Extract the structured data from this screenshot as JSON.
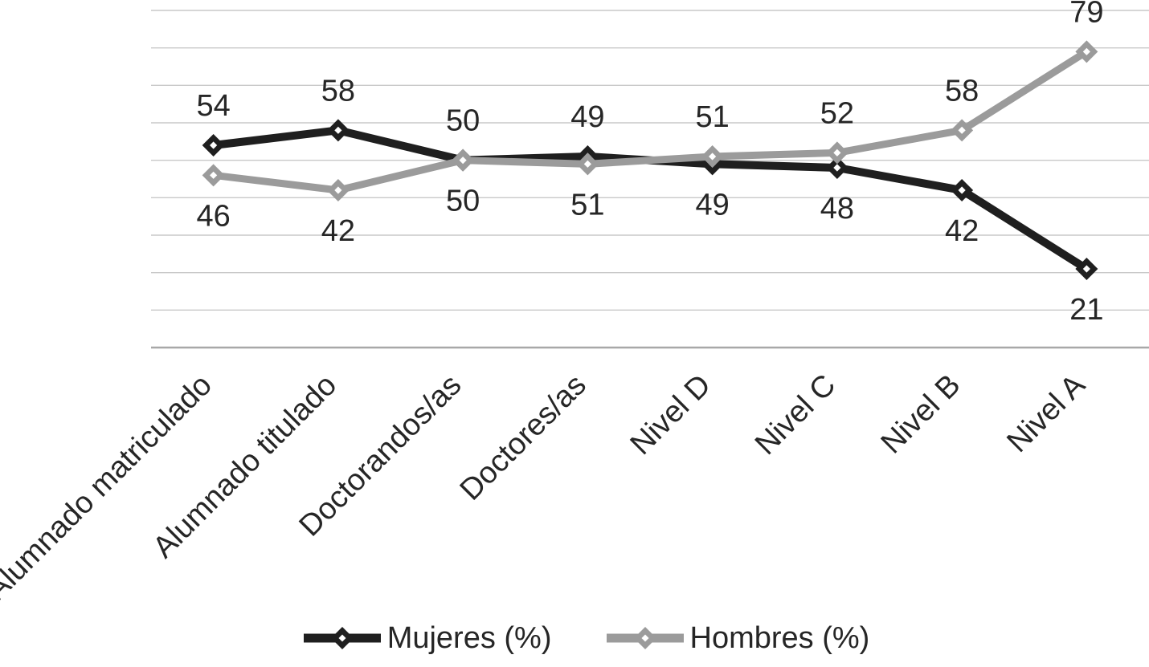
{
  "figure": {
    "background_color": "#ffffff",
    "text_color": "#262626"
  },
  "legend": {
    "position": "bottom",
    "items": [
      {
        "label": "Mujeres (%)",
        "marker": "line-with-diamond",
        "color": "#1f1f1f"
      },
      {
        "label": "Hombres (%)",
        "marker": "line-with-diamond",
        "color": "#9b9b9b"
      }
    ]
  },
  "chart_data": {
    "type": "line",
    "categories": [
      "Alumnado matriculado",
      "Alumnado titulado",
      "Doctorandos/as",
      "Doctores/as",
      "Nivel D",
      "Nivel C",
      "Nivel B",
      "Nivel A"
    ],
    "series": [
      {
        "name": "Mujeres (%)",
        "color": "#1f1f1f",
        "marker": "diamond",
        "values": [
          54,
          58,
          50,
          51,
          49,
          48,
          42,
          21
        ]
      },
      {
        "name": "Hombres (%)",
        "color": "#9b9b9b",
        "marker": "diamond",
        "values": [
          46,
          42,
          50,
          49,
          51,
          52,
          58,
          79
        ]
      }
    ],
    "data_labels_above": [
      "54",
      "58",
      "50",
      "49",
      "51",
      "52",
      "58",
      "79"
    ],
    "data_labels_below": [
      "46",
      "42",
      "50",
      "51",
      "49",
      "48",
      "42",
      "21"
    ],
    "title": "",
    "xlabel": "",
    "ylabel": "",
    "ylim": [
      0,
      90
    ],
    "y_gridline_step": 10,
    "y_axis_tick_labels_visible": false,
    "grid": true,
    "gridline_color": "#c9c9c9",
    "axis_line_color": "#a8a8a8",
    "label_color": "#262626",
    "category_label_rotation_deg": 45,
    "legend_position": "bottom"
  }
}
